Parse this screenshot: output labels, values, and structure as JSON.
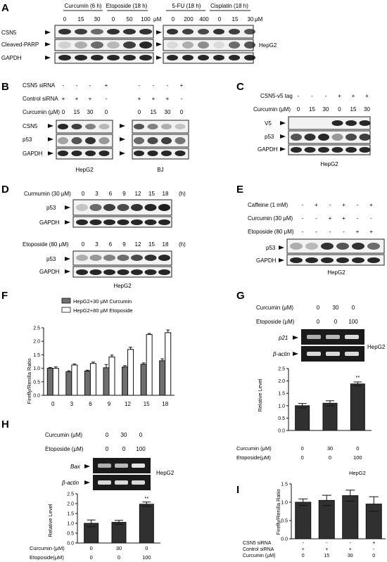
{
  "panels": {
    "A": {
      "letter": "A",
      "header_left": [
        "Curcumin (6 h)",
        "Etoposide (18 h)"
      ],
      "header_right": [
        "5-FU (18 h)",
        "Cisplatin (18 h)"
      ],
      "doses_left": [
        "0",
        "15",
        "30",
        "0",
        "50",
        "100"
      ],
      "doses_right": [
        "0",
        "200",
        "400",
        "0",
        "15",
        "30"
      ],
      "unit": "μM",
      "rows": [
        "CSN5",
        "Cleaved-PARP",
        "GAPDH"
      ],
      "cell": "HepG2"
    },
    "B": {
      "letter": "B",
      "rows_label": [
        "CSN5 siRNA",
        "Control siRNA",
        "Curcumin (μM)"
      ],
      "csn5": [
        "-",
        "-",
        "-",
        "+",
        "-",
        "-",
        "-",
        "+"
      ],
      "ctrl": [
        "+",
        "+",
        "+",
        "-",
        "+",
        "+",
        "+",
        "-"
      ],
      "cur": [
        "0",
        "15",
        "30",
        "0",
        "0",
        "15",
        "30",
        "0"
      ],
      "blots": [
        "CSN5",
        "p53",
        "GAPDH"
      ],
      "cells": [
        "HepG2",
        "BJ"
      ]
    },
    "C": {
      "letter": "C",
      "rows_label": [
        "CSN5-v5 tag",
        "Curcumin (μM)"
      ],
      "tag": [
        "-",
        "-",
        "-",
        "+",
        "+",
        "+"
      ],
      "cur": [
        "0",
        "15",
        "30",
        "0",
        "15",
        "30"
      ],
      "blots": [
        "V5",
        "p53",
        "GAPDH"
      ],
      "cell": "HepG2"
    },
    "D": {
      "letter": "D",
      "label1": "Curmumin (30 μM)",
      "label2": "Etoposide (80 μM)",
      "times": [
        "0",
        "3",
        "6",
        "9",
        "12",
        "15",
        "18"
      ],
      "unit": "(h)",
      "blots": [
        "p53",
        "GAPDH"
      ],
      "cell": "HepG2"
    },
    "E": {
      "letter": "E",
      "rows_label": [
        "Caffeine (1 mM)",
        "Curcumin (30 μM)",
        "Etoposide (80 μM)"
      ],
      "caf": [
        "-",
        "+",
        "-",
        "+",
        "-",
        "+"
      ],
      "cur": [
        "-",
        "-",
        "+",
        "+",
        "-",
        "-"
      ],
      "eto": [
        "-",
        "-",
        "-",
        "-",
        "+",
        "+"
      ],
      "blots": [
        "p53",
        "GAPDH"
      ],
      "cell": "HepG2"
    },
    "F": {
      "letter": "F",
      "ylabel": "Firefly/Renilla Ratio",
      "legend": [
        "HepG2+30 μM Curcumin",
        "HepG2+80 μM Etoposide"
      ],
      "yticks": [
        "0.0",
        "0.5",
        "1.0",
        "1.5",
        "2.0",
        "2.5"
      ],
      "xticks": [
        "0",
        "3",
        "6",
        "9",
        "12",
        "15",
        "18"
      ]
    },
    "G": {
      "letter": "G",
      "rows_label": [
        "Curcumin (μM)",
        "Etoposide (μM)"
      ],
      "cur": [
        "0",
        "30",
        "0"
      ],
      "eto": [
        "0",
        "0",
        "100"
      ],
      "genes": [
        "p21",
        "β-actin"
      ],
      "cell": "HepG2",
      "ylabel": "Relative Level",
      "yticks": [
        "0.0",
        "0.5",
        "1.0",
        "1.5",
        "2.0",
        "2.5"
      ],
      "x_rows": [
        "Curcumin (μM)",
        "Etoposide(μM)"
      ],
      "x_cur": [
        "0",
        "30",
        "0"
      ],
      "x_eto": [
        "0",
        "0",
        "100"
      ],
      "sig": "**"
    },
    "H": {
      "letter": "H",
      "rows_label": [
        "Curcumin (μM)",
        "Etoposide (μM)"
      ],
      "cur": [
        "0",
        "30",
        "0"
      ],
      "eto": [
        "0",
        "0",
        "100"
      ],
      "genes": [
        "Bax",
        "β-actin"
      ],
      "cell": "HepG2",
      "ylabel": "Relative Level",
      "yticks": [
        "0.0",
        "0.5",
        "1.0",
        "1.5",
        "2.0",
        "2.5"
      ],
      "x_rows": [
        "Curcumin (μM)",
        "Etoposide(μM)"
      ],
      "x_cur": [
        "0",
        "30",
        "0"
      ],
      "x_eto": [
        "0",
        "0",
        "100"
      ],
      "sig": "**"
    },
    "I": {
      "letter": "I",
      "title": "HepG2",
      "ylabel": "Firefly/Renilla Ratio",
      "yticks": [
        "0.0",
        "0.5",
        "1.0",
        "1.5"
      ],
      "x_rows": [
        "CSN5 siRNA",
        "Control siRNA",
        "Curcumin (μM)"
      ],
      "csn5": [
        "-",
        "-",
        "-",
        "+"
      ],
      "ctrl": [
        "+",
        "+",
        "+",
        "-"
      ],
      "cur": [
        "0",
        "15",
        "30",
        "0"
      ]
    }
  },
  "colors": {
    "dark_bar": "#6f6f6f",
    "light_bar": "#ffffff",
    "gel_bg": "#1a1a1a",
    "bar_fill": "#303030"
  },
  "chart_data": [
    {
      "panel": "F",
      "type": "bar",
      "categories": [
        "0",
        "3",
        "6",
        "9",
        "12",
        "15",
        "18"
      ],
      "series": [
        {
          "name": "HepG2+30 μM Curcumin",
          "values": [
            1.0,
            0.87,
            0.9,
            1.02,
            1.05,
            1.15,
            1.28
          ],
          "err": [
            0.03,
            0.04,
            0.03,
            0.12,
            0.05,
            0.05,
            0.07
          ]
        },
        {
          "name": "HepG2+80 μM Etoposide",
          "values": [
            1.0,
            1.12,
            1.18,
            1.42,
            1.7,
            2.25,
            2.32
          ],
          "err": [
            0.05,
            0.04,
            0.05,
            0.07,
            0.08,
            0.04,
            0.1
          ]
        }
      ],
      "ylim": [
        0,
        2.5
      ]
    },
    {
      "panel": "G",
      "type": "bar",
      "categories": [
        "1",
        "2",
        "3"
      ],
      "values": [
        1.0,
        1.1,
        1.88
      ],
      "err": [
        0.09,
        0.1,
        0.08
      ],
      "ylim": [
        0,
        2.5
      ]
    },
    {
      "panel": "H",
      "type": "bar",
      "categories": [
        "1",
        "2",
        "3"
      ],
      "values": [
        1.0,
        1.05,
        1.97
      ],
      "err": [
        0.17,
        0.1,
        0.11
      ],
      "ylim": [
        0,
        2.5
      ]
    },
    {
      "panel": "I",
      "type": "bar",
      "categories": [
        "1",
        "2",
        "3",
        "4"
      ],
      "values": [
        1.0,
        1.05,
        1.18,
        0.95
      ],
      "err": [
        0.09,
        0.14,
        0.15,
        0.2
      ],
      "ylim": [
        0,
        1.5
      ]
    }
  ]
}
